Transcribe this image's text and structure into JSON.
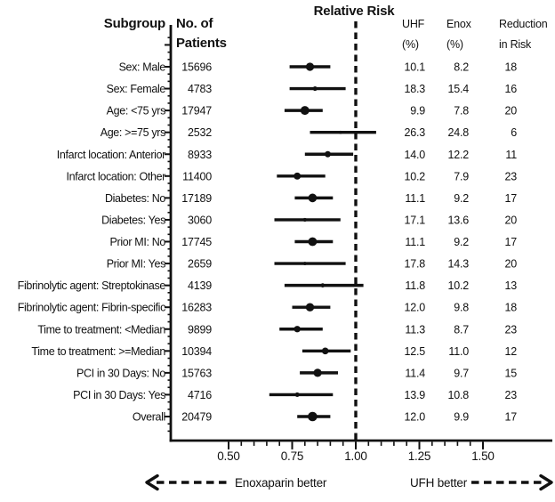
{
  "colors": {
    "ink": "#111111",
    "background": "#ffffff"
  },
  "headers": {
    "subgroup": "Subgroup",
    "patients": [
      "No. of",
      "Patients"
    ],
    "relative_risk": "Relative Risk",
    "uhf": [
      "UHF",
      "(%)"
    ],
    "enox": [
      "Enox",
      "(%)"
    ],
    "reduction": [
      "Reduction",
      "in Risk"
    ]
  },
  "footer": {
    "left_label": "Enoxaparin better",
    "right_label": "UFH better"
  },
  "chart_data": {
    "type": "scatter",
    "subtype": "forest-plot",
    "title": "Relative Risk",
    "x_axis": {
      "scale": "linear",
      "tick_values": [
        0.5,
        0.75,
        1.0,
        1.25,
        1.5
      ],
      "tick_labels": [
        "0.50",
        "0.75",
        "1.00",
        "1.25",
        "1.50"
      ],
      "minor_tick_step": 0.05,
      "minor_tick_range": [
        0.5,
        1.5
      ],
      "reference_line": 1.0
    },
    "marker_note": "point marker area scales with number of patients",
    "rows": [
      {
        "label": "Sex: Male",
        "n": "15696",
        "uhf_pct": "10.1",
        "enox_pct": "8.2",
        "reduction_pct": "18",
        "rr": 0.82,
        "ci_low": 0.74,
        "ci_high": 0.9
      },
      {
        "label": "Sex: Female",
        "n": "4783",
        "uhf_pct": "18.3",
        "enox_pct": "15.4",
        "reduction_pct": "16",
        "rr": 0.84,
        "ci_low": 0.74,
        "ci_high": 0.96
      },
      {
        "label": "Age: <75 yrs",
        "n": "17947",
        "uhf_pct": "9.9",
        "enox_pct": "7.8",
        "reduction_pct": "20",
        "rr": 0.8,
        "ci_low": 0.72,
        "ci_high": 0.87
      },
      {
        "label": "Age: >=75 yrs",
        "n": "2532",
        "uhf_pct": "26.3",
        "enox_pct": "24.8",
        "reduction_pct": "6",
        "rr": 0.94,
        "ci_low": 0.82,
        "ci_high": 1.08
      },
      {
        "label": "Infarct location: Anterior",
        "n": "8933",
        "uhf_pct": "14.0",
        "enox_pct": "12.2",
        "reduction_pct": "11",
        "rr": 0.89,
        "ci_low": 0.8,
        "ci_high": 0.99
      },
      {
        "label": "Infarct location: Other",
        "n": "11400",
        "uhf_pct": "10.2",
        "enox_pct": "7.9",
        "reduction_pct": "23",
        "rr": 0.77,
        "ci_low": 0.69,
        "ci_high": 0.88
      },
      {
        "label": "Diabetes: No",
        "n": "17189",
        "uhf_pct": "11.1",
        "enox_pct": "9.2",
        "reduction_pct": "17",
        "rr": 0.83,
        "ci_low": 0.76,
        "ci_high": 0.91
      },
      {
        "label": "Diabetes: Yes",
        "n": "3060",
        "uhf_pct": "17.1",
        "enox_pct": "13.6",
        "reduction_pct": "20",
        "rr": 0.8,
        "ci_low": 0.68,
        "ci_high": 0.94
      },
      {
        "label": "Prior MI: No",
        "n": "17745",
        "uhf_pct": "11.1",
        "enox_pct": "9.2",
        "reduction_pct": "17",
        "rr": 0.83,
        "ci_low": 0.76,
        "ci_high": 0.91
      },
      {
        "label": "Prior MI: Yes",
        "n": "2659",
        "uhf_pct": "17.8",
        "enox_pct": "14.3",
        "reduction_pct": "20",
        "rr": 0.8,
        "ci_low": 0.68,
        "ci_high": 0.96
      },
      {
        "label": "Fibrinolytic agent: Streptokinase",
        "n": "4139",
        "uhf_pct": "11.8",
        "enox_pct": "10.2",
        "reduction_pct": "13",
        "rr": 0.87,
        "ci_low": 0.72,
        "ci_high": 1.03
      },
      {
        "label": "Fibrinolytic agent: Fibrin-specific",
        "n": "16283",
        "uhf_pct": "12.0",
        "enox_pct": "9.8",
        "reduction_pct": "18",
        "rr": 0.82,
        "ci_low": 0.75,
        "ci_high": 0.9
      },
      {
        "label": "Time to treatment: <Median",
        "n": "9899",
        "uhf_pct": "11.3",
        "enox_pct": "8.7",
        "reduction_pct": "23",
        "rr": 0.77,
        "ci_low": 0.7,
        "ci_high": 0.87
      },
      {
        "label": "Time to treatment: >=Median",
        "n": "10394",
        "uhf_pct": "12.5",
        "enox_pct": "11.0",
        "reduction_pct": "12",
        "rr": 0.88,
        "ci_low": 0.79,
        "ci_high": 0.98
      },
      {
        "label": "PCI in 30 Days: No",
        "n": "15763",
        "uhf_pct": "11.4",
        "enox_pct": "9.7",
        "reduction_pct": "15",
        "rr": 0.85,
        "ci_low": 0.78,
        "ci_high": 0.93
      },
      {
        "label": "PCI in 30 Days: Yes",
        "n": "4716",
        "uhf_pct": "13.9",
        "enox_pct": "10.8",
        "reduction_pct": "23",
        "rr": 0.77,
        "ci_low": 0.66,
        "ci_high": 0.91
      },
      {
        "label": "Overall",
        "n": "20479",
        "uhf_pct": "12.0",
        "enox_pct": "9.9",
        "reduction_pct": "17",
        "rr": 0.83,
        "ci_low": 0.77,
        "ci_high": 0.9
      }
    ]
  }
}
